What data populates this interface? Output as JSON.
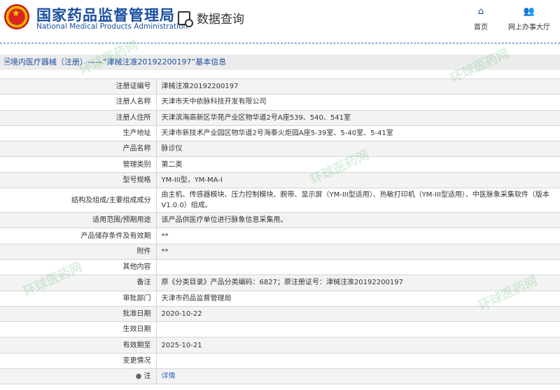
{
  "header": {
    "title_cn": "国家药品监督管理局",
    "title_en": "National Medical Products Administration",
    "section": "数据查询",
    "nav": [
      {
        "label": "首页",
        "icon": "home-icon"
      },
      {
        "label": "网上办事大厅",
        "icon": "user-group-icon"
      }
    ]
  },
  "breadcrumb": "境内医疗器械（注册）——“津械注准20192200197”基本信息",
  "rows": [
    {
      "label": "注册证编号",
      "value": "津械注准20192200197"
    },
    {
      "label": "注册人名称",
      "value": "天津市天中依脉科技开发有限公司"
    },
    {
      "label": "注册人住所",
      "value": "天津滨海高新区华苑产业区物华道2号A座539、540、541室"
    },
    {
      "label": "生产地址",
      "value": "天津市新技术产业园区物华道2号海泰火炬园A座5-39室、5-40室、5-41室"
    },
    {
      "label": "产品名称",
      "value": "脉诊仪"
    },
    {
      "label": "管理类别",
      "value": "第二类"
    },
    {
      "label": "型号规格",
      "value": "YM-III型，YM-MA-I"
    },
    {
      "label": "结构及组成/主要组成成分",
      "value": "由主机、传感器模块、压力控制模块、腕带、显示屏（YM-III型适用）、热敏打印机（YM-III型适用）、中医脉象采集软件（版本V1.0.0）组成。"
    },
    {
      "label": "适用范围/预期用途",
      "value": "该产品供医疗单位进行脉象信息采集用。"
    },
    {
      "label": "产品储存条件及有效期",
      "value": "**"
    },
    {
      "label": "附件",
      "value": "**"
    },
    {
      "label": "其他内容",
      "value": ""
    },
    {
      "label": "备注",
      "value": "原《分类目录》产品分类编码：6827；原注册证号：津械注准20192200197"
    },
    {
      "label": "审批部门",
      "value": "天津市药品监督管理局"
    },
    {
      "label": "批准日期",
      "value": "2020-10-22"
    },
    {
      "label": "生效日期",
      "value": ""
    },
    {
      "label": "有效期至",
      "value": "2025-10-21"
    },
    {
      "label": "变更情况",
      "value": ""
    },
    {
      "label": "注",
      "value": "详情"
    }
  ],
  "watermark": "环球医药网"
}
